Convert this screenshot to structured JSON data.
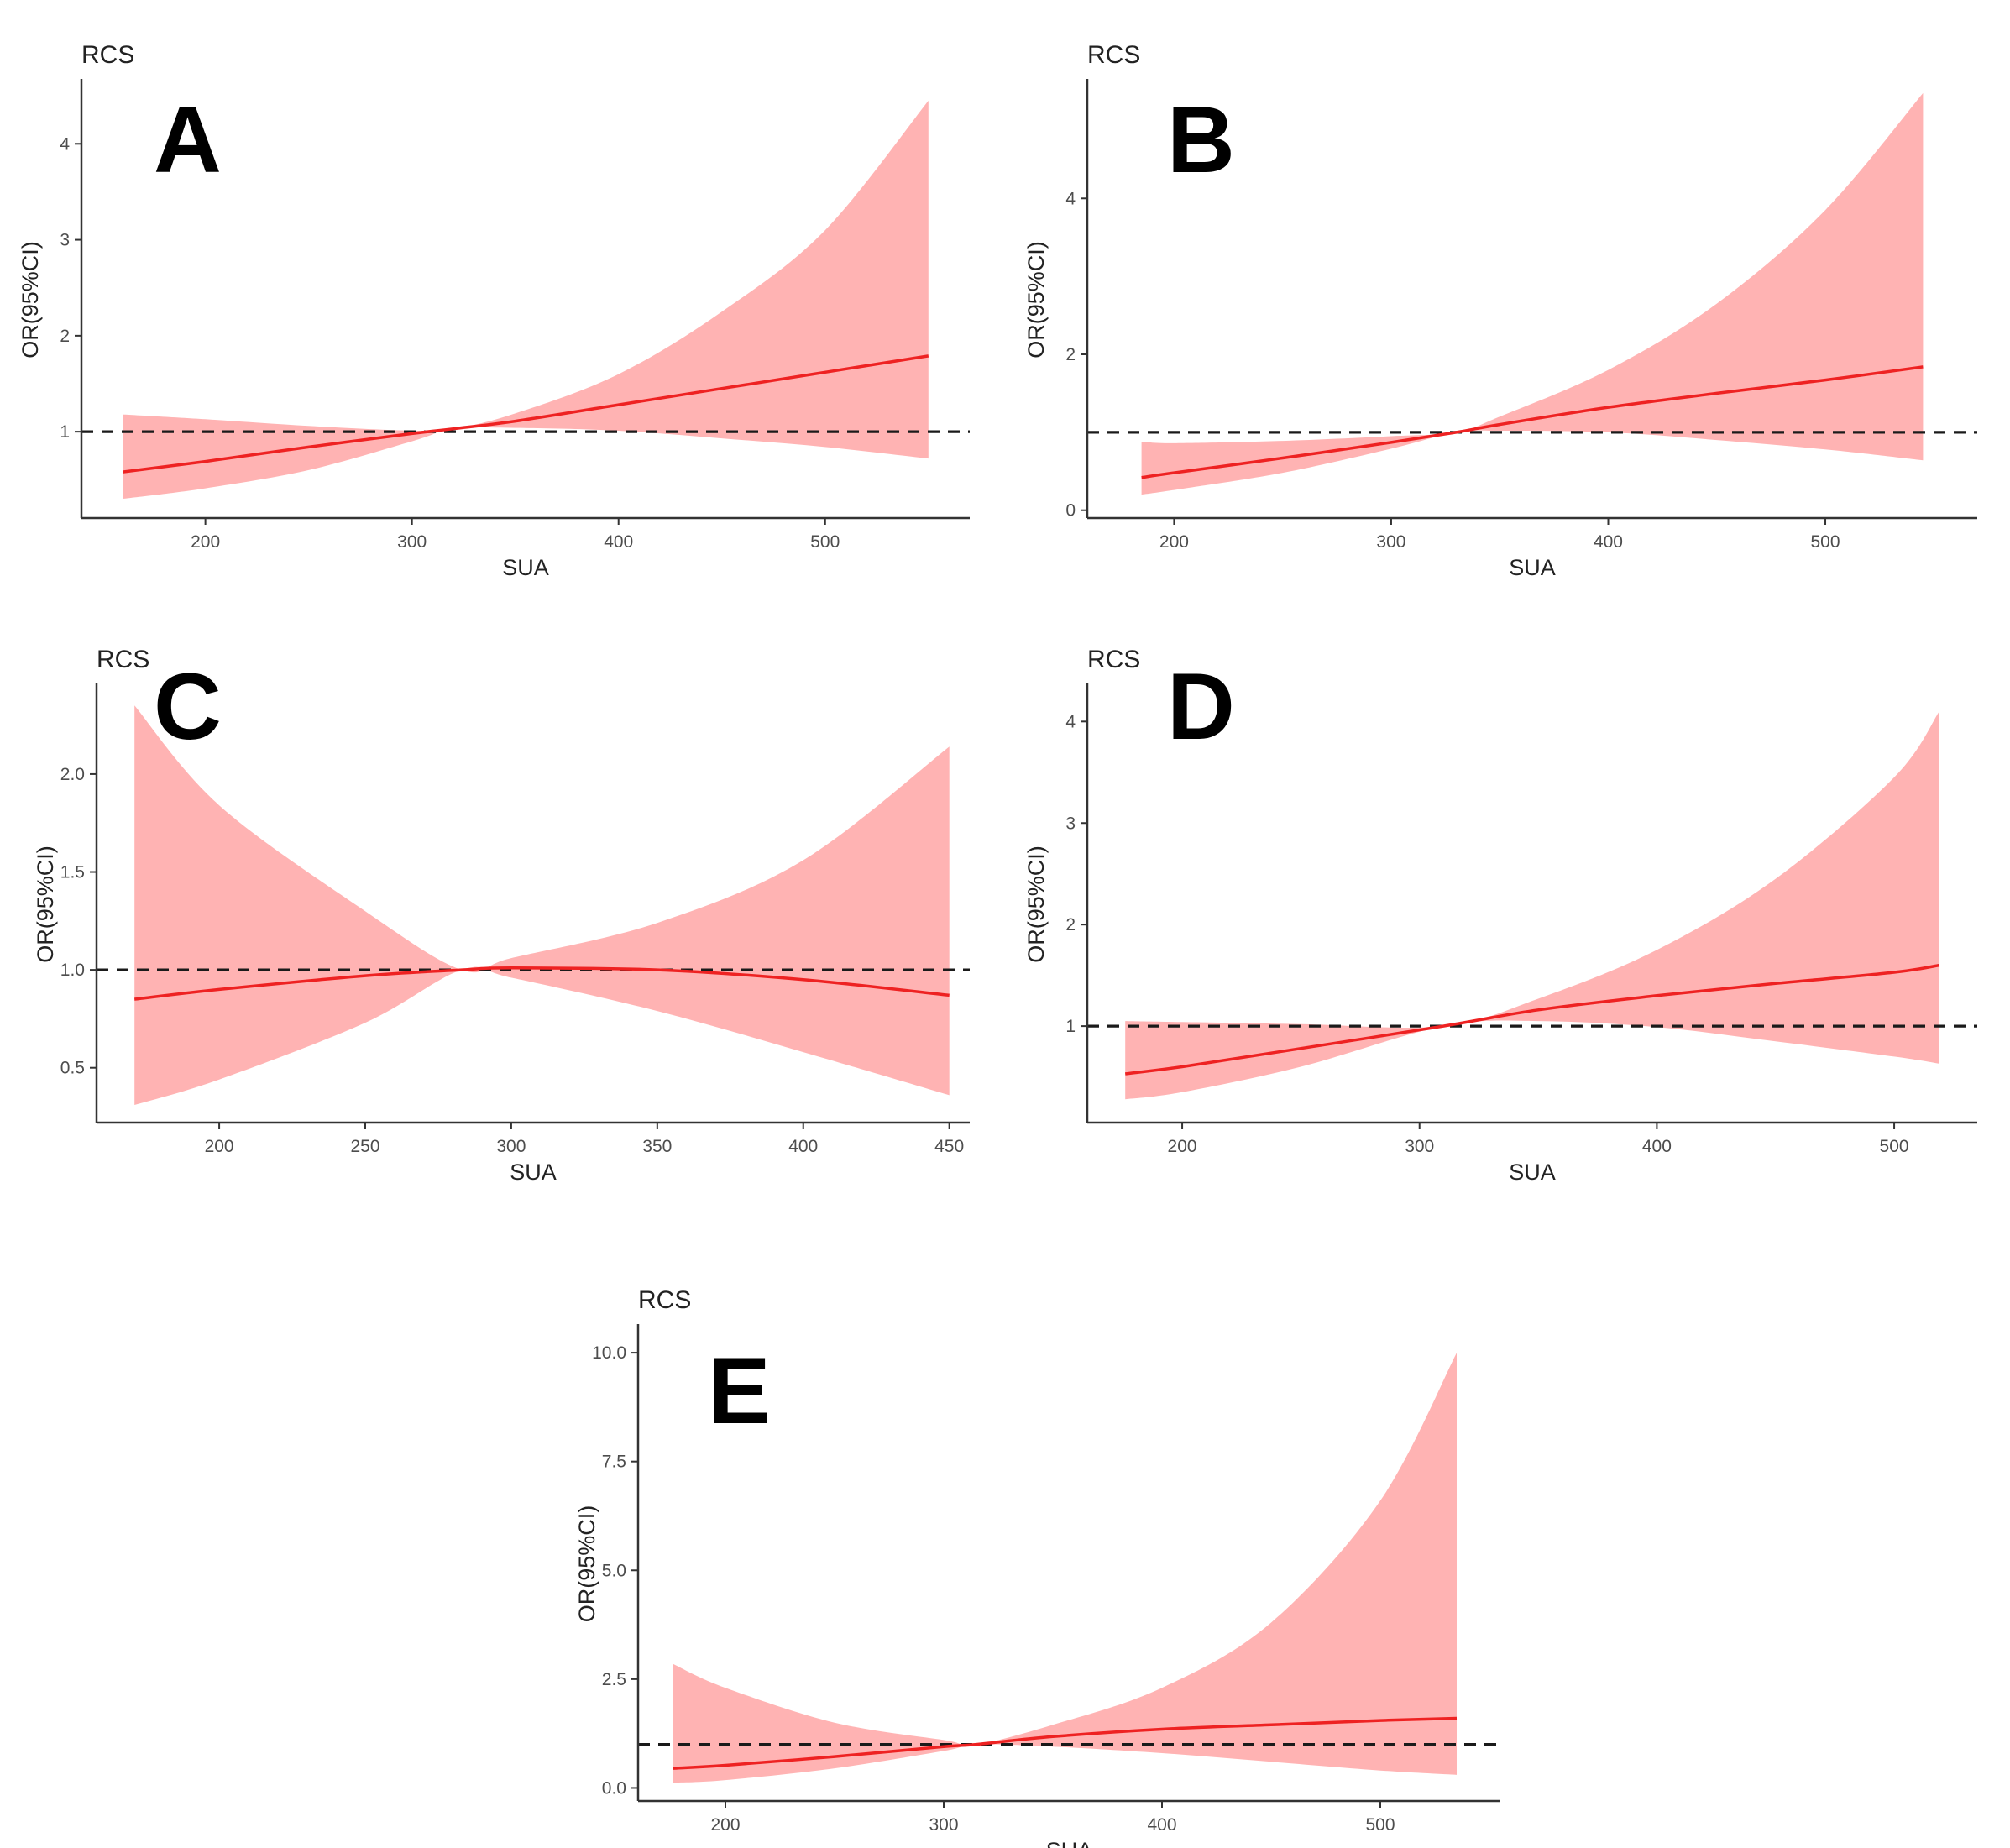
{
  "chart_data": [
    {
      "panel": "A",
      "type": "line",
      "title": "RCS",
      "xlabel": "SUA",
      "ylabel": "OR(95%CI)",
      "xlim": [
        140,
        570
      ],
      "ylim": [
        0.1,
        4.65
      ],
      "xticks": [
        200,
        300,
        400,
        500
      ],
      "yticks": [
        1,
        2,
        3,
        4
      ],
      "xtick_labels": [
        "200",
        "300",
        "400",
        "500"
      ],
      "ytick_labels": [
        "1",
        "2",
        "3",
        "4"
      ],
      "reference_y": 1,
      "series": [
        {
          "name": "OR",
          "color": "#ee2222",
          "band_color": "#ffb3b3"
        }
      ],
      "x": [
        160,
        200,
        250,
        300,
        320,
        350,
        400,
        450,
        500,
        550
      ],
      "or": [
        0.58,
        0.69,
        0.84,
        0.98,
        1.03,
        1.11,
        1.28,
        1.45,
        1.62,
        1.79
      ],
      "lower": [
        0.3,
        0.41,
        0.6,
        0.9,
        1.03,
        1.04,
        1.01,
        0.93,
        0.84,
        0.72
      ],
      "upper": [
        1.18,
        1.13,
        1.06,
        1.01,
        1.03,
        1.19,
        1.6,
        2.25,
        3.1,
        4.45
      ]
    },
    {
      "panel": "B",
      "type": "line",
      "title": "RCS",
      "xlabel": "SUA",
      "ylabel": "OR(95%CI)",
      "xlim": [
        160,
        570
      ],
      "ylim": [
        -0.1,
        5.5
      ],
      "xticks": [
        200,
        300,
        400,
        500
      ],
      "yticks": [
        0,
        2,
        4
      ],
      "xtick_labels": [
        "200",
        "300",
        "400",
        "500"
      ],
      "ytick_labels": [
        "0",
        "2",
        "4"
      ],
      "reference_y": 1,
      "series": [
        {
          "name": "OR",
          "color": "#ee2222",
          "band_color": "#ffb3b3"
        }
      ],
      "x": [
        185,
        200,
        250,
        300,
        330,
        350,
        400,
        450,
        500,
        545
      ],
      "or": [
        0.42,
        0.48,
        0.67,
        0.87,
        1.0,
        1.1,
        1.32,
        1.5,
        1.67,
        1.84
      ],
      "lower": [
        0.2,
        0.26,
        0.48,
        0.79,
        1.0,
        1.02,
        1.0,
        0.9,
        0.78,
        0.64
      ],
      "upper": [
        0.88,
        0.86,
        0.89,
        0.95,
        1.0,
        1.2,
        1.8,
        2.65,
        3.85,
        5.35
      ]
    },
    {
      "panel": "C",
      "type": "line",
      "title": "RCS",
      "xlabel": "SUA",
      "ylabel": "OR(95%CI)",
      "xlim": [
        158,
        457
      ],
      "ylim": [
        0.22,
        2.45
      ],
      "xticks": [
        200,
        250,
        300,
        350,
        400,
        450
      ],
      "yticks": [
        0.5,
        1.0,
        1.5,
        2.0
      ],
      "xtick_labels": [
        "200",
        "250",
        "300",
        "350",
        "400",
        "450"
      ],
      "ytick_labels": [
        "0.5",
        "1.0",
        "1.5",
        "2.0"
      ],
      "reference_y": 1.0,
      "series": [
        {
          "name": "OR",
          "color": "#ee2222",
          "band_color": "#ffb3b3"
        }
      ],
      "x": [
        171,
        200,
        250,
        283,
        300,
        350,
        400,
        450
      ],
      "or": [
        0.85,
        0.9,
        0.97,
        1.0,
        1.01,
        1.0,
        0.95,
        0.87
      ],
      "lower": [
        0.31,
        0.44,
        0.73,
        1.0,
        0.96,
        0.79,
        0.58,
        0.36
      ],
      "upper": [
        2.35,
        1.84,
        1.3,
        1.0,
        1.06,
        1.24,
        1.56,
        2.14
      ]
    },
    {
      "panel": "D",
      "type": "line",
      "title": "RCS",
      "xlabel": "SUA",
      "ylabel": "OR(95%CI)",
      "xlim": [
        160,
        535
      ],
      "ylim": [
        0.05,
        4.35
      ],
      "xticks": [
        200,
        300,
        400,
        500
      ],
      "yticks": [
        1,
        2,
        3,
        4
      ],
      "xtick_labels": [
        "200",
        "300",
        "400",
        "500"
      ],
      "ytick_labels": [
        "1",
        "2",
        "3",
        "4"
      ],
      "reference_y": 1,
      "series": [
        {
          "name": "OR",
          "color": "#ee2222",
          "band_color": "#ffb3b3"
        }
      ],
      "x": [
        176,
        200,
        250,
        310,
        350,
        400,
        450,
        500,
        519
      ],
      "or": [
        0.53,
        0.6,
        0.78,
        1.0,
        1.16,
        1.3,
        1.42,
        1.53,
        1.6
      ],
      "lower": [
        0.28,
        0.35,
        0.6,
        1.0,
        1.05,
        0.99,
        0.85,
        0.7,
        0.63
      ],
      "upper": [
        1.05,
        1.04,
        1.02,
        1.0,
        1.27,
        1.75,
        2.45,
        3.45,
        4.1
      ]
    },
    {
      "panel": "E",
      "type": "line",
      "title": "RCS",
      "xlabel": "SUA",
      "ylabel": "OR(95%CI)",
      "xlim": [
        160,
        555
      ],
      "ylim": [
        -0.3,
        10.6
      ],
      "xticks": [
        200,
        300,
        400,
        500
      ],
      "yticks": [
        0.0,
        2.5,
        5.0,
        7.5,
        10.0
      ],
      "xtick_labels": [
        "200",
        "300",
        "400",
        "500"
      ],
      "ytick_labels": [
        "0.0",
        "2.5",
        "5.0",
        "7.5",
        "10.0"
      ],
      "reference_y": 1,
      "series": [
        {
          "name": "OR",
          "color": "#ee2222",
          "band_color": "#ffb3b3"
        }
      ],
      "x": [
        176,
        200,
        250,
        300,
        315,
        350,
        400,
        450,
        500,
        535
      ],
      "or": [
        0.45,
        0.52,
        0.72,
        0.95,
        1.0,
        1.18,
        1.35,
        1.45,
        1.55,
        1.6
      ],
      "lower": [
        0.12,
        0.18,
        0.45,
        0.85,
        1.0,
        0.95,
        0.8,
        0.6,
        0.4,
        0.3
      ],
      "upper": [
        2.85,
        2.3,
        1.5,
        1.1,
        1.0,
        1.45,
        2.3,
        3.8,
        6.6,
        10.0
      ]
    }
  ]
}
